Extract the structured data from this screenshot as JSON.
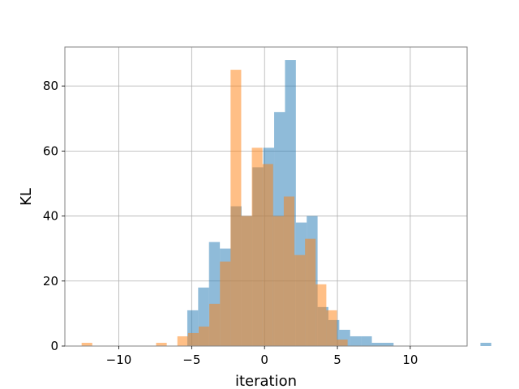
{
  "chart_data": {
    "type": "histogram",
    "title": "",
    "xlabel": "iteration",
    "ylabel": "KL",
    "xlim": [
      -13.7,
      13.9
    ],
    "ylim": [
      0,
      92
    ],
    "xticks": [
      -10,
      -5,
      0,
      5,
      10
    ],
    "xtick_labels": [
      "−10",
      "−5",
      "0",
      "5",
      "10"
    ],
    "yticks": [
      0,
      20,
      40,
      60,
      80
    ],
    "ytick_labels": [
      "0",
      "20",
      "40",
      "60",
      "80"
    ],
    "grid": true,
    "legend": null,
    "series": [
      {
        "color": "#1f77b4",
        "alpha": 0.5,
        "bin_start": -5.3,
        "bin_width": 0.745,
        "counts": [
          11,
          18,
          32,
          30,
          43,
          40,
          55,
          61,
          72,
          88,
          38,
          40,
          12,
          8,
          5,
          3,
          3,
          1,
          1,
          0,
          0,
          0,
          0,
          0,
          0,
          0,
          0,
          1
        ]
      },
      {
        "color": "#ff7f0e",
        "alpha": 0.5,
        "bin_start": -12.55,
        "bin_width": 0.73,
        "counts": [
          1,
          0,
          0,
          0,
          0,
          0,
          0,
          1,
          0,
          3,
          4,
          6,
          13,
          26,
          85,
          40,
          61,
          56,
          40,
          46,
          28,
          33,
          19,
          11,
          2
        ]
      }
    ]
  }
}
